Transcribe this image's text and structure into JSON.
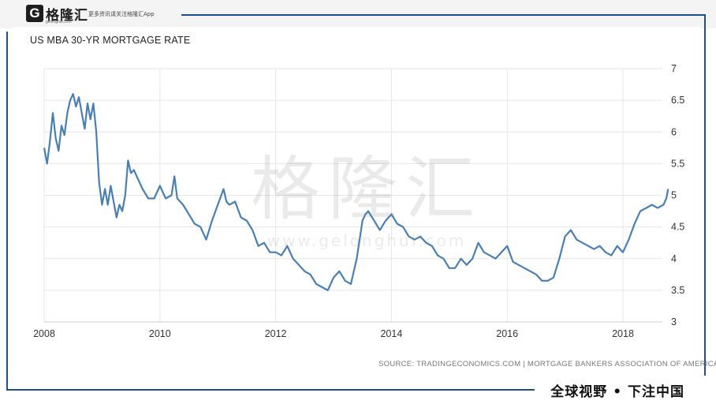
{
  "header": {
    "logo_letter": "G",
    "logo_name": "格隆汇",
    "logo_domain": "gelonghui.com",
    "slogan": "更多资讯请关注格隆汇App"
  },
  "footer": {
    "slogan": "全球视野 • 下注中国"
  },
  "watermark": {
    "text": "格隆汇",
    "url": "www.gelonghui.com"
  },
  "colors": {
    "line": "#4a7fb3",
    "frame": "#1f4e8c",
    "grid": "#e6e6e6"
  },
  "chart_data": {
    "type": "line",
    "title": "US MBA 30-YR MORTGAGE RATE",
    "source": "SOURCE: TRADINGECONOMICS.COM  |  MORTGAGE BANKERS ASSOCIATION OF AMERICA",
    "xlabel": "",
    "ylabel": "",
    "x_ticks": [
      "2008",
      "2010",
      "2012",
      "2014",
      "2016",
      "2018"
    ],
    "y_ticks": [
      "3",
      "3.5",
      "4",
      "4.5",
      "5",
      "5.5",
      "6",
      "6.5",
      "7"
    ],
    "xlim": [
      2008,
      2018.8
    ],
    "ylim": [
      3,
      7
    ],
    "grid": true,
    "legend": "none",
    "series": [
      {
        "x": [
          2008.0,
          2008.05,
          2008.1,
          2008.15,
          2008.2,
          2008.25,
          2008.3,
          2008.35,
          2008.4,
          2008.45,
          2008.5,
          2008.55,
          2008.6,
          2008.65,
          2008.7,
          2008.75,
          2008.8,
          2008.85,
          2008.9,
          2008.95,
          2009.0,
          2009.05,
          2009.1,
          2009.15,
          2009.2,
          2009.25,
          2009.3,
          2009.35,
          2009.4,
          2009.45,
          2009.5,
          2009.55,
          2009.6,
          2009.7,
          2009.8,
          2009.9,
          2010.0,
          2010.1,
          2010.2,
          2010.25,
          2010.3,
          2010.4,
          2010.5,
          2010.6,
          2010.7,
          2010.8,
          2010.9,
          2011.0,
          2011.1,
          2011.15,
          2011.2,
          2011.3,
          2011.4,
          2011.5,
          2011.6,
          2011.7,
          2011.8,
          2011.9,
          2012.0,
          2012.1,
          2012.2,
          2012.3,
          2012.4,
          2012.5,
          2012.6,
          2012.7,
          2012.8,
          2012.9,
          2013.0,
          2013.1,
          2013.2,
          2013.3,
          2013.4,
          2013.5,
          2013.55,
          2013.6,
          2013.7,
          2013.8,
          2013.9,
          2014.0,
          2014.1,
          2014.2,
          2014.3,
          2014.4,
          2014.5,
          2014.6,
          2014.7,
          2014.8,
          2014.9,
          2015.0,
          2015.1,
          2015.2,
          2015.3,
          2015.4,
          2015.5,
          2015.6,
          2015.7,
          2015.8,
          2015.9,
          2016.0,
          2016.1,
          2016.2,
          2016.3,
          2016.4,
          2016.5,
          2016.6,
          2016.7,
          2016.8,
          2016.9,
          2017.0,
          2017.1,
          2017.2,
          2017.3,
          2017.4,
          2017.5,
          2017.6,
          2017.7,
          2017.8,
          2017.9,
          2018.0,
          2018.1,
          2018.2,
          2018.3,
          2018.4,
          2018.5,
          2018.6,
          2018.7,
          2018.75,
          2018.78
        ],
        "values": [
          5.75,
          5.5,
          5.85,
          6.3,
          5.9,
          5.7,
          6.1,
          5.95,
          6.3,
          6.5,
          6.6,
          6.4,
          6.55,
          6.3,
          6.05,
          6.45,
          6.2,
          6.45,
          6.0,
          5.2,
          4.85,
          5.1,
          4.85,
          5.15,
          4.9,
          4.65,
          4.85,
          4.75,
          5.0,
          5.55,
          5.35,
          5.4,
          5.3,
          5.1,
          4.95,
          4.95,
          5.15,
          4.95,
          5.0,
          5.3,
          4.95,
          4.85,
          4.7,
          4.55,
          4.5,
          4.3,
          4.6,
          4.85,
          5.1,
          4.9,
          4.85,
          4.9,
          4.65,
          4.6,
          4.45,
          4.2,
          4.25,
          4.1,
          4.1,
          4.05,
          4.2,
          4.0,
          3.9,
          3.8,
          3.75,
          3.6,
          3.55,
          3.5,
          3.7,
          3.8,
          3.65,
          3.6,
          4.0,
          4.6,
          4.7,
          4.75,
          4.6,
          4.45,
          4.6,
          4.7,
          4.55,
          4.5,
          4.35,
          4.3,
          4.35,
          4.25,
          4.2,
          4.05,
          4.0,
          3.85,
          3.85,
          4.0,
          3.9,
          4.0,
          4.25,
          4.1,
          4.05,
          4.0,
          4.1,
          4.2,
          3.95,
          3.9,
          3.85,
          3.8,
          3.75,
          3.65,
          3.65,
          3.7,
          4.0,
          4.35,
          4.45,
          4.3,
          4.25,
          4.2,
          4.15,
          4.2,
          4.1,
          4.05,
          4.2,
          4.1,
          4.3,
          4.55,
          4.75,
          4.8,
          4.85,
          4.8,
          4.85,
          4.95,
          5.1
        ]
      }
    ]
  }
}
